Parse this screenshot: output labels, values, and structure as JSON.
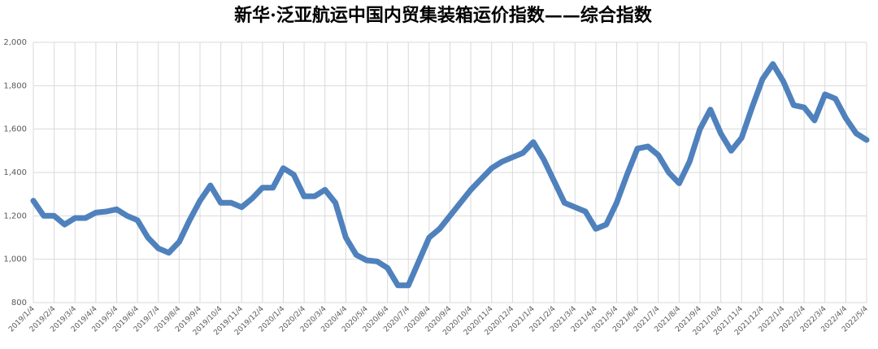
{
  "chart_data": {
    "type": "line",
    "title": "新华·泛亚航运中国内贸集装箱运价指数——综合指数",
    "categories": [
      "2019/1/4",
      null,
      "2019/2/4",
      null,
      "2019/3/4",
      null,
      "2019/4/4",
      null,
      "2019/5/4",
      null,
      "2019/6/4",
      null,
      "2019/7/4",
      null,
      "2019/8/4",
      null,
      "2019/9/4",
      null,
      "2019/10/4",
      null,
      "2019/11/4",
      null,
      "2019/12/4",
      null,
      "2020/1/4",
      null,
      "2020/2/4",
      null,
      "2020/3/4",
      null,
      "2020/4/4",
      null,
      "2020/5/4",
      null,
      "2020/6/4",
      null,
      "2020/7/4",
      null,
      "2020/8/4",
      null,
      "2020/9/4",
      null,
      "2020/10/4",
      null,
      "2020/11/4",
      null,
      "2020/12/4",
      null,
      "2021/1/4",
      null,
      "2021/2/4",
      null,
      "2021/3/4",
      null,
      "2021/4/4",
      null,
      "2021/5/4",
      null,
      "2021/6/4",
      null,
      "2021/7/4",
      null,
      "2021/8/4",
      null,
      "2021/9/4",
      null,
      "2021/10/4",
      null,
      "2021/11/4",
      null,
      "2021/12/4",
      null,
      "2022/1/4",
      null,
      "2022/2/4",
      null,
      "2022/3/4",
      null,
      "2022/4/4",
      null,
      "2022/5/4"
    ],
    "series": [
      {
        "name": "综合指数",
        "color": "#4f81bd",
        "values": [
          1270,
          1200,
          1200,
          1160,
          1190,
          1190,
          1215,
          1220,
          1230,
          1200,
          1180,
          1100,
          1050,
          1030,
          1080,
          1180,
          1270,
          1340,
          1260,
          1260,
          1240,
          1280,
          1330,
          1330,
          1420,
          1390,
          1290,
          1290,
          1320,
          1260,
          1100,
          1020,
          995,
          990,
          960,
          880,
          880,
          990,
          1100,
          1140,
          1200,
          1260,
          1320,
          1370,
          1420,
          1450,
          1470,
          1490,
          1540,
          1460,
          1360,
          1260,
          1240,
          1220,
          1140,
          1160,
          1260,
          1390,
          1510,
          1520,
          1480,
          1400,
          1350,
          1450,
          1600,
          1690,
          1580,
          1500,
          1560,
          1700,
          1830,
          1900,
          1820,
          1710,
          1700,
          1640,
          1760,
          1740,
          1650,
          1580,
          1550
        ]
      }
    ],
    "ylim": [
      800,
      2000
    ],
    "yticks": [
      800,
      {
        "value": 1000,
        "label": "1,000"
      },
      {
        "value": 1200,
        "label": "1,200"
      },
      {
        "value": 1400,
        "label": "1,400"
      },
      {
        "value": 1600,
        "label": "1,600"
      },
      {
        "value": 1800,
        "label": "1,800"
      },
      {
        "value": 2000,
        "label": "2,000"
      }
    ],
    "grid": true
  }
}
